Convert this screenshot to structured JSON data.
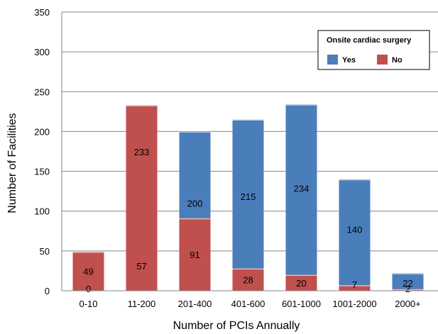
{
  "chart_data": {
    "type": "bar",
    "stacked": true,
    "categories": [
      "0-10",
      "11-200",
      "201-400",
      "401-600",
      "601-1000",
      "1001-2000",
      "2000+"
    ],
    "series": [
      {
        "name": "Yes",
        "values": [
          0,
          57,
          200,
          215,
          234,
          140,
          22
        ],
        "color": "#4a7ebb"
      },
      {
        "name": "No",
        "values": [
          49,
          233,
          91,
          28,
          20,
          7,
          2
        ],
        "color": "#c0504d"
      }
    ],
    "xlabel": "Number of PCIs Annually",
    "ylabel": "Number of Facilities",
    "ylim": [
      0,
      350
    ],
    "yticks": [
      0,
      50,
      100,
      150,
      200,
      250,
      300,
      350
    ],
    "grid": true,
    "legend": {
      "title": "Onsite cardiac surgery",
      "placement": "top-right"
    }
  }
}
